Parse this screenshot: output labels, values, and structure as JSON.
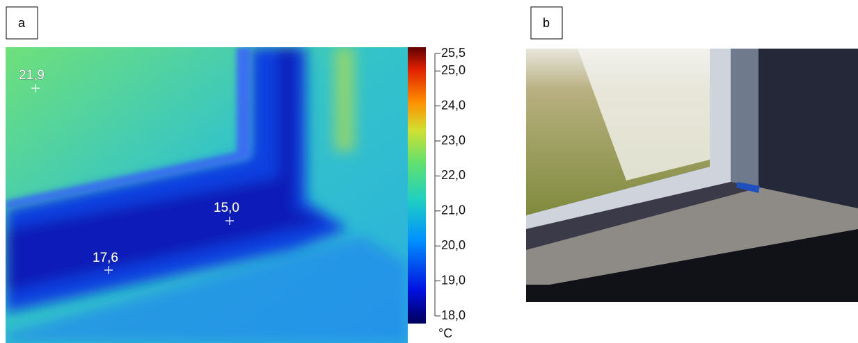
{
  "panels": [
    {
      "label": "a",
      "spots": [
        "21,9",
        "15,0",
        "17,6"
      ],
      "colorbar": {
        "ticks": [
          {
            "value": 25.5,
            "label": "25,5"
          },
          {
            "value": 25,
            "label": "25,0"
          },
          {
            "value": 24,
            "label": "24,0"
          },
          {
            "value": 23,
            "label": "23,0"
          },
          {
            "value": 22,
            "label": "22,0"
          },
          {
            "value": 21,
            "label": "21,0"
          },
          {
            "value": 20,
            "label": "20,0"
          },
          {
            "value": 19,
            "label": "19,0"
          },
          {
            "value": 18,
            "label": "18,0"
          }
        ],
        "unit": "°C"
      }
    },
    {
      "label": "b"
    }
  ]
}
